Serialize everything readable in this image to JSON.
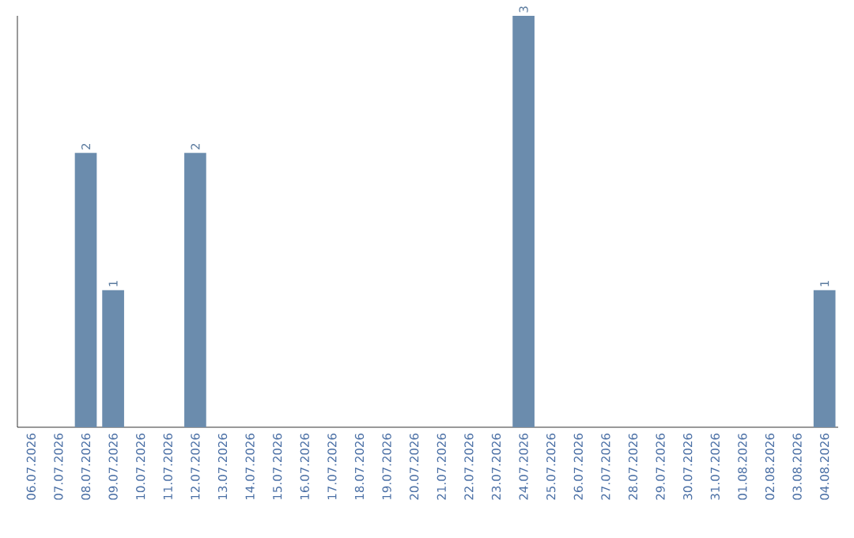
{
  "chart_data": {
    "type": "bar",
    "categories": [
      "06.07.2026",
      "07.07.2026",
      "08.07.2026",
      "09.07.2026",
      "10.07.2026",
      "11.07.2026",
      "12.07.2026",
      "13.07.2026",
      "14.07.2026",
      "15.07.2026",
      "16.07.2026",
      "17.07.2026",
      "18.07.2026",
      "19.07.2026",
      "20.07.2026",
      "21.07.2026",
      "22.07.2026",
      "23.07.2026",
      "24.07.2026",
      "25.07.2026",
      "26.07.2026",
      "27.07.2026",
      "28.07.2026",
      "29.07.2026",
      "30.07.2026",
      "31.07.2026",
      "01.08.2026",
      "02.08.2026",
      "03.08.2026",
      "04.08.2026"
    ],
    "values": [
      0,
      0,
      2,
      1,
      0,
      0,
      2,
      0,
      0,
      0,
      0,
      0,
      0,
      0,
      0,
      0,
      0,
      0,
      3,
      0,
      0,
      0,
      0,
      0,
      0,
      0,
      0,
      0,
      0,
      1
    ],
    "value_labels": [
      null,
      null,
      "2",
      "1",
      null,
      null,
      "2",
      null,
      null,
      null,
      null,
      null,
      null,
      null,
      null,
      null,
      null,
      null,
      "3",
      null,
      null,
      null,
      null,
      null,
      null,
      null,
      null,
      null,
      null,
      "1"
    ],
    "color": "#6b8cad"
  }
}
